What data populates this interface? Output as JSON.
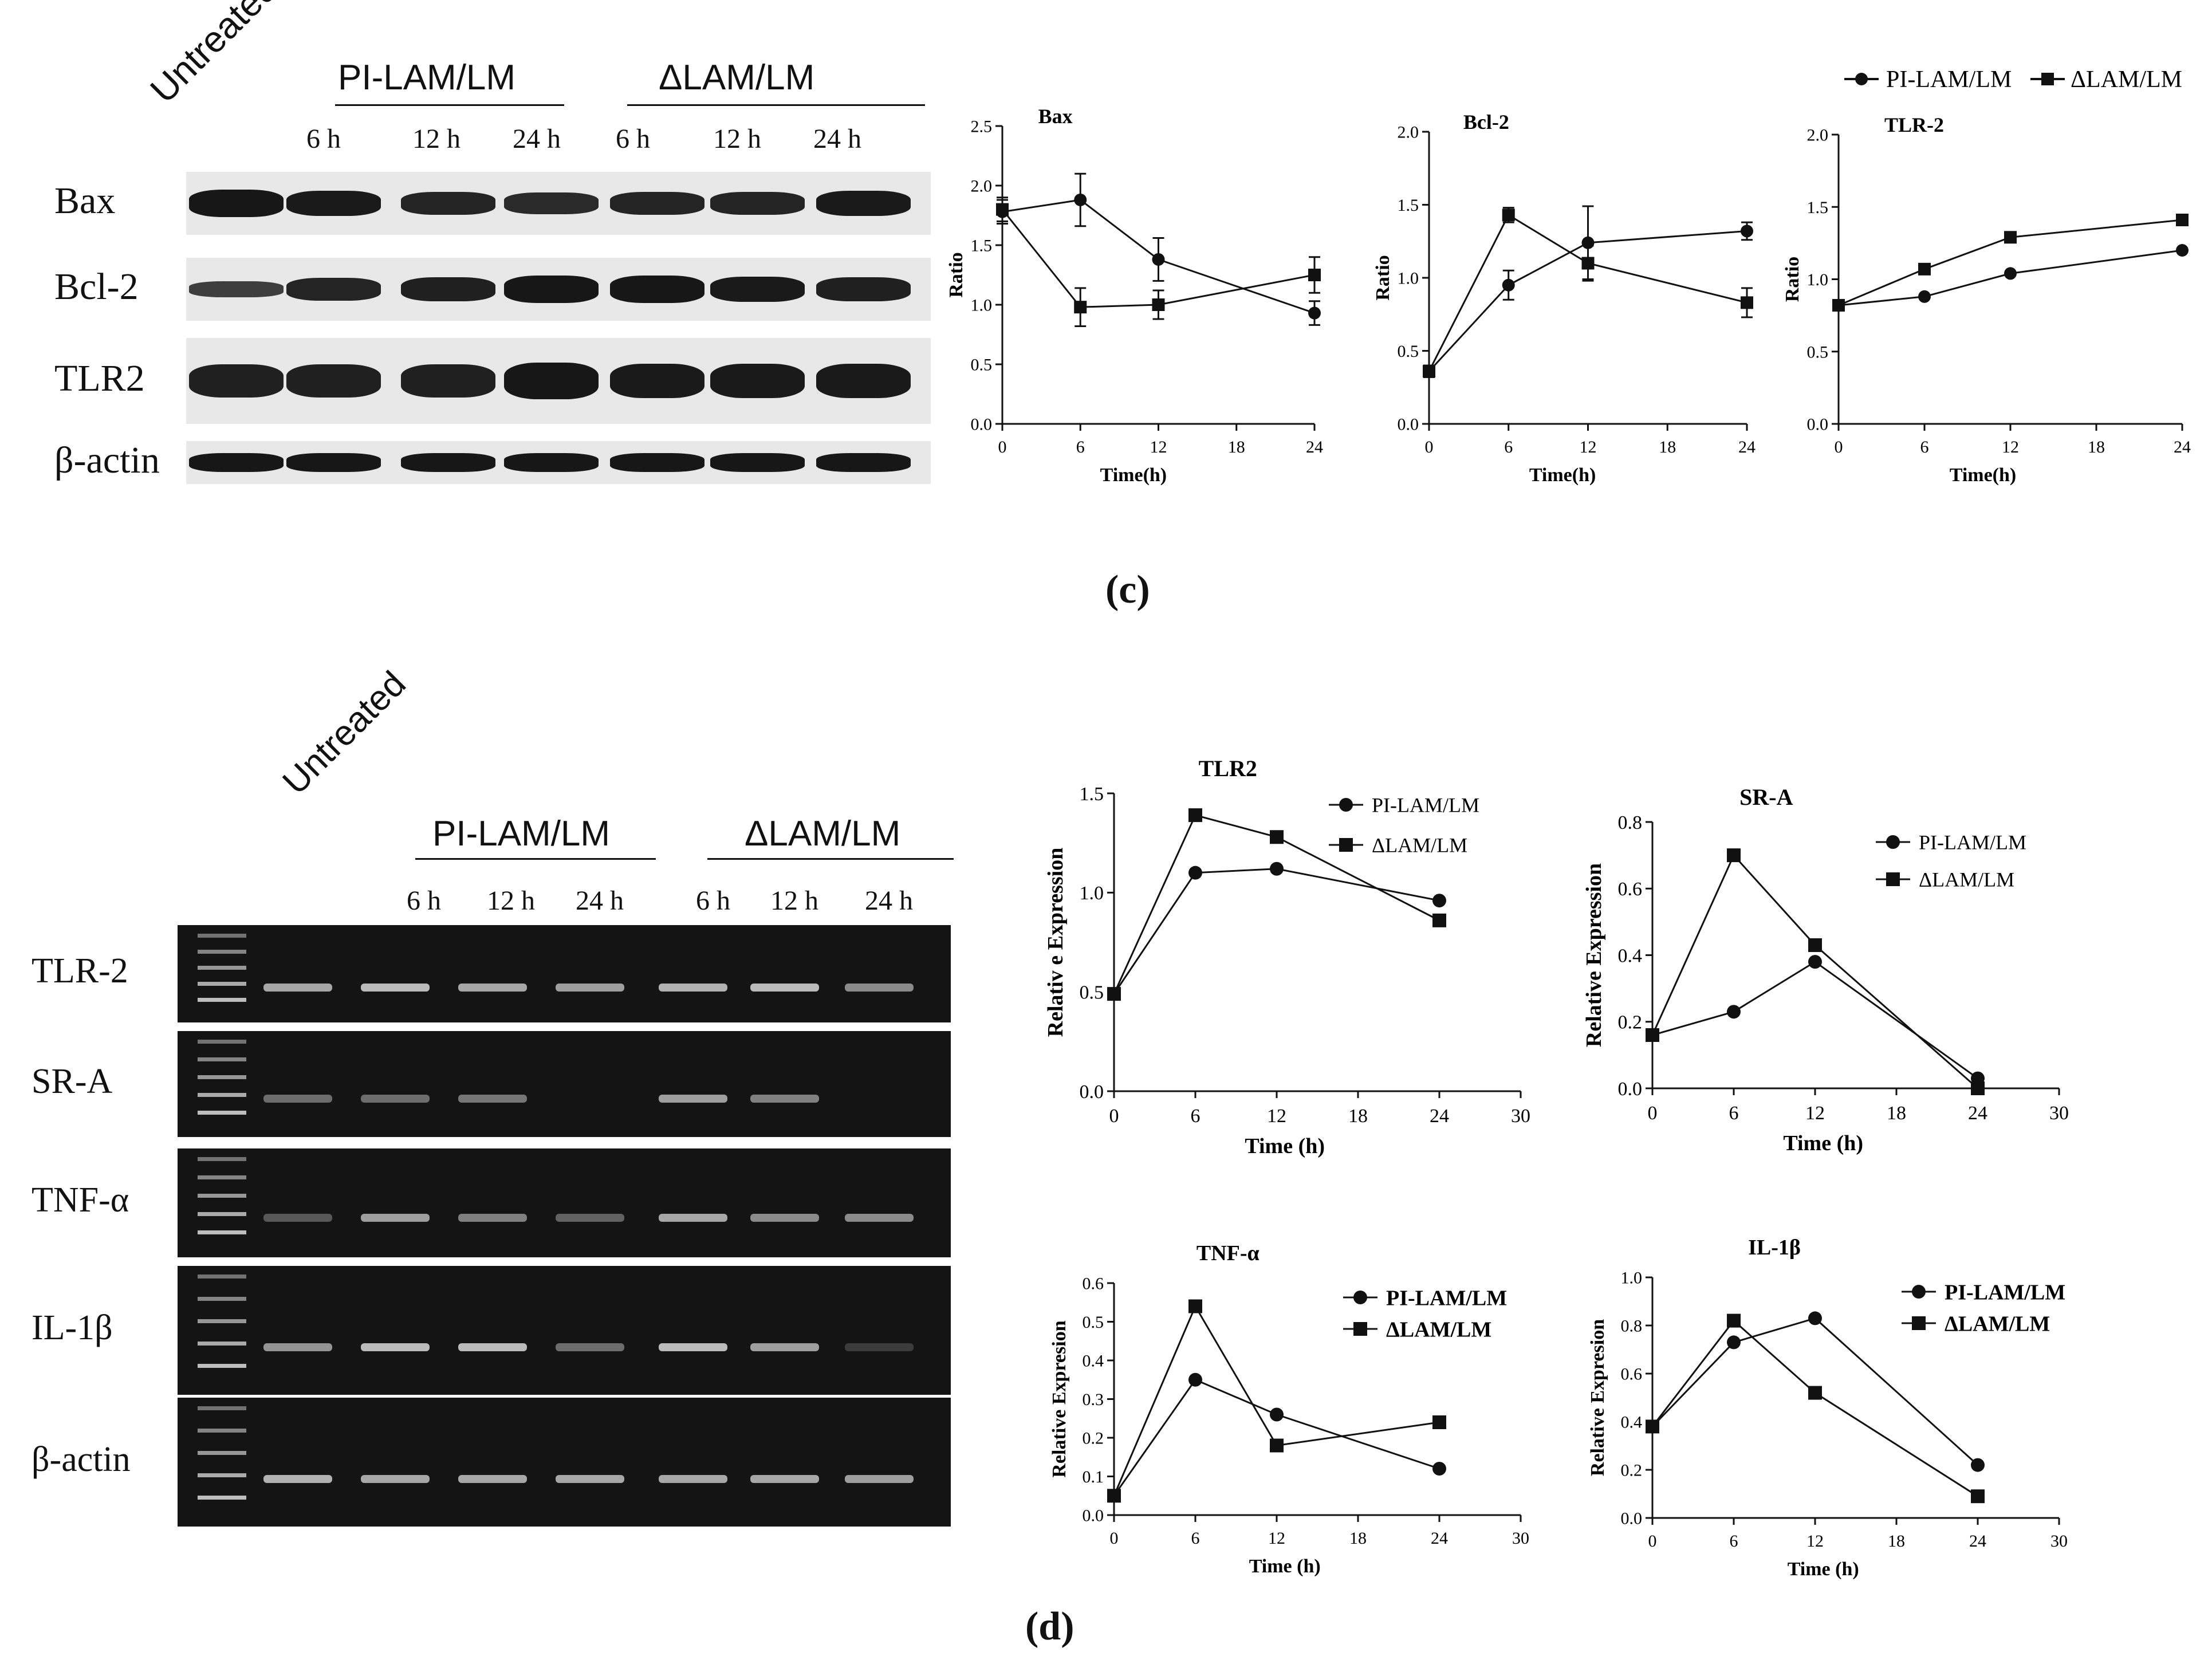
{
  "western_blot": {
    "untreated_label": "Untreated",
    "group1_label": "PI-LAM/LM",
    "group2_label": "ΔLAM/LM",
    "timepoints": [
      "6 h",
      "12 h",
      "24 h",
      "6 h",
      "12 h",
      "24 h"
    ],
    "rows": [
      "Bax",
      "Bcl-2",
      "TLR2",
      "β-actin"
    ]
  },
  "panel_c_label": "(c)",
  "panel_d_label": "(d)",
  "rt_pcr": {
    "untreated_label": "Untreated",
    "group1_label": "PI-LAM/LM",
    "group2_label": "ΔLAM/LM",
    "timepoints": [
      "6 h",
      "12 h",
      "24 h",
      "6 h",
      "12 h",
      "24 h"
    ],
    "rows": [
      "TLR-2",
      "SR-A",
      "TNF-α",
      "IL-1β",
      "β-actin"
    ]
  },
  "top_legend": {
    "series1": "PI-LAM/LM",
    "series2": "ΔLAM/LM"
  },
  "colors": {
    "line": "#111111",
    "gel_bg": "#0e0e0e",
    "band": "#d8d8d8",
    "blot_band": "#1a1a1a"
  },
  "chart_data": [
    {
      "id": "bax",
      "type": "line",
      "title": "Bax",
      "xlabel": "Time(h)",
      "ylabel": "Ratio",
      "x": [
        0,
        6,
        12,
        24
      ],
      "xticks": [
        "0",
        "6",
        "12",
        "18",
        "24"
      ],
      "yticks": [
        "0.0",
        "0.5",
        "1.0",
        "1.5",
        "2.0",
        "2.5"
      ],
      "xlim": [
        0,
        24
      ],
      "ylim": [
        0,
        2.5
      ],
      "series": [
        {
          "name": "PI-LAM/LM",
          "marker": "circle",
          "values": [
            1.78,
            1.88,
            1.38,
            0.93
          ],
          "err": [
            0.1,
            0.22,
            0.18,
            0.1
          ]
        },
        {
          "name": "ΔLAM/LM",
          "marker": "square",
          "values": [
            1.8,
            0.98,
            1.0,
            1.25
          ],
          "err": [
            0.1,
            0.16,
            0.12,
            0.15
          ]
        }
      ]
    },
    {
      "id": "bcl2",
      "type": "line",
      "title": "Bcl-2",
      "xlabel": "Time(h)",
      "ylabel": "Ratio",
      "x": [
        0,
        6,
        12,
        24
      ],
      "xticks": [
        "0",
        "6",
        "12",
        "18",
        "24"
      ],
      "yticks": [
        "0.0",
        "0.5",
        "1.0",
        "1.5",
        "2.0"
      ],
      "xlim": [
        0,
        24
      ],
      "ylim": [
        0,
        2.0
      ],
      "series": [
        {
          "name": "PI-LAM/LM",
          "marker": "circle",
          "values": [
            0.36,
            0.95,
            1.24,
            1.32
          ],
          "err": [
            0.04,
            0.1,
            0.25,
            0.06
          ]
        },
        {
          "name": "ΔLAM/LM",
          "marker": "square",
          "values": [
            0.36,
            1.43,
            1.1,
            0.83
          ],
          "err": [
            0.04,
            0.05,
            0.12,
            0.1
          ]
        }
      ]
    },
    {
      "id": "tlr2_protein",
      "type": "line",
      "title": "TLR-2",
      "xlabel": "Time(h)",
      "ylabel": "Ratio",
      "x": [
        0,
        6,
        12,
        24
      ],
      "xticks": [
        "0",
        "6",
        "12",
        "18",
        "24"
      ],
      "yticks": [
        "0.0",
        "0.5",
        "1.0",
        "1.5",
        "2.0"
      ],
      "xlim": [
        0,
        24
      ],
      "ylim": [
        0,
        2.0
      ],
      "series": [
        {
          "name": "PI-LAM/LM",
          "marker": "circle",
          "values": [
            0.82,
            0.88,
            1.04,
            1.2
          ],
          "err": [
            0,
            0,
            0,
            0
          ]
        },
        {
          "name": "ΔLAM/LM",
          "marker": "square",
          "values": [
            0.82,
            1.07,
            1.29,
            1.41
          ],
          "err": [
            0,
            0,
            0,
            0
          ]
        }
      ]
    },
    {
      "id": "tlr2_mrna",
      "type": "line",
      "title": "TLR2",
      "xlabel": "Time (h)",
      "ylabel": "Relativ e Expression",
      "x": [
        0,
        6,
        12,
        24
      ],
      "xticks": [
        "0",
        "6",
        "12",
        "18",
        "24",
        "30"
      ],
      "yticks": [
        "0.0",
        "0.5",
        "1.0",
        "1.5"
      ],
      "xlim": [
        0,
        30
      ],
      "ylim": [
        0,
        1.5
      ],
      "legend": [
        "PI-LAM/LM",
        "ΔLAM/LM"
      ],
      "series": [
        {
          "name": "PI-LAM/LM",
          "marker": "circle",
          "values": [
            0.49,
            1.1,
            1.12,
            0.96
          ]
        },
        {
          "name": "ΔLAM/LM",
          "marker": "square",
          "values": [
            0.49,
            1.39,
            1.28,
            0.86
          ]
        }
      ]
    },
    {
      "id": "sra_mrna",
      "type": "line",
      "title": "SR-A",
      "xlabel": "Time (h)",
      "ylabel": "Relative Expression",
      "x": [
        0,
        6,
        12,
        24
      ],
      "xticks": [
        "0",
        "6",
        "12",
        "18",
        "24",
        "30"
      ],
      "yticks": [
        "0.0",
        "0.2",
        "0.4",
        "0.6",
        "0.8"
      ],
      "xlim": [
        0,
        30
      ],
      "ylim": [
        0,
        0.8
      ],
      "legend": [
        "PI-LAM/LM",
        "ΔLAM/LM"
      ],
      "series": [
        {
          "name": "PI-LAM/LM",
          "marker": "circle",
          "values": [
            0.16,
            0.23,
            0.38,
            0.03
          ]
        },
        {
          "name": "ΔLAM/LM",
          "marker": "square",
          "values": [
            0.16,
            0.7,
            0.43,
            0.0
          ]
        }
      ]
    },
    {
      "id": "tnfa_mrna",
      "type": "line",
      "title": "TNF-α",
      "xlabel": "Time (h)",
      "ylabel": "Relative Expresion",
      "x": [
        0,
        6,
        12,
        24
      ],
      "xticks": [
        "0",
        "6",
        "12",
        "18",
        "24",
        "30"
      ],
      "yticks": [
        "0.0",
        "0.1",
        "0.2",
        "0.3",
        "0.4",
        "0.5",
        "0.6"
      ],
      "xlim": [
        0,
        30
      ],
      "ylim": [
        0,
        0.6
      ],
      "legend": [
        "PI-LAM/LM",
        "ΔLAM/LM"
      ],
      "series": [
        {
          "name": "PI-LAM/LM",
          "marker": "circle",
          "values": [
            0.05,
            0.35,
            0.26,
            0.12
          ]
        },
        {
          "name": "ΔLAM/LM",
          "marker": "square",
          "values": [
            0.05,
            0.54,
            0.18,
            0.24
          ]
        }
      ]
    },
    {
      "id": "il1b_mrna",
      "type": "line",
      "title": "IL-1β",
      "xlabel": "Time (h)",
      "ylabel": "Relative Expresion",
      "x": [
        0,
        6,
        12,
        24
      ],
      "xticks": [
        "0",
        "6",
        "12",
        "18",
        "24",
        "30"
      ],
      "yticks": [
        "0.0",
        "0.2",
        "0.4",
        "0.6",
        "0.8",
        "1.0"
      ],
      "xlim": [
        0,
        30
      ],
      "ylim": [
        0,
        1.0
      ],
      "legend": [
        "PI-LAM/LM",
        "ΔLAM/LM"
      ],
      "series": [
        {
          "name": "PI-LAM/LM",
          "marker": "circle",
          "values": [
            0.38,
            0.73,
            0.83,
            0.22
          ]
        },
        {
          "name": "ΔLAM/LM",
          "marker": "square",
          "values": [
            0.38,
            0.82,
            0.52,
            0.09
          ]
        }
      ]
    }
  ]
}
